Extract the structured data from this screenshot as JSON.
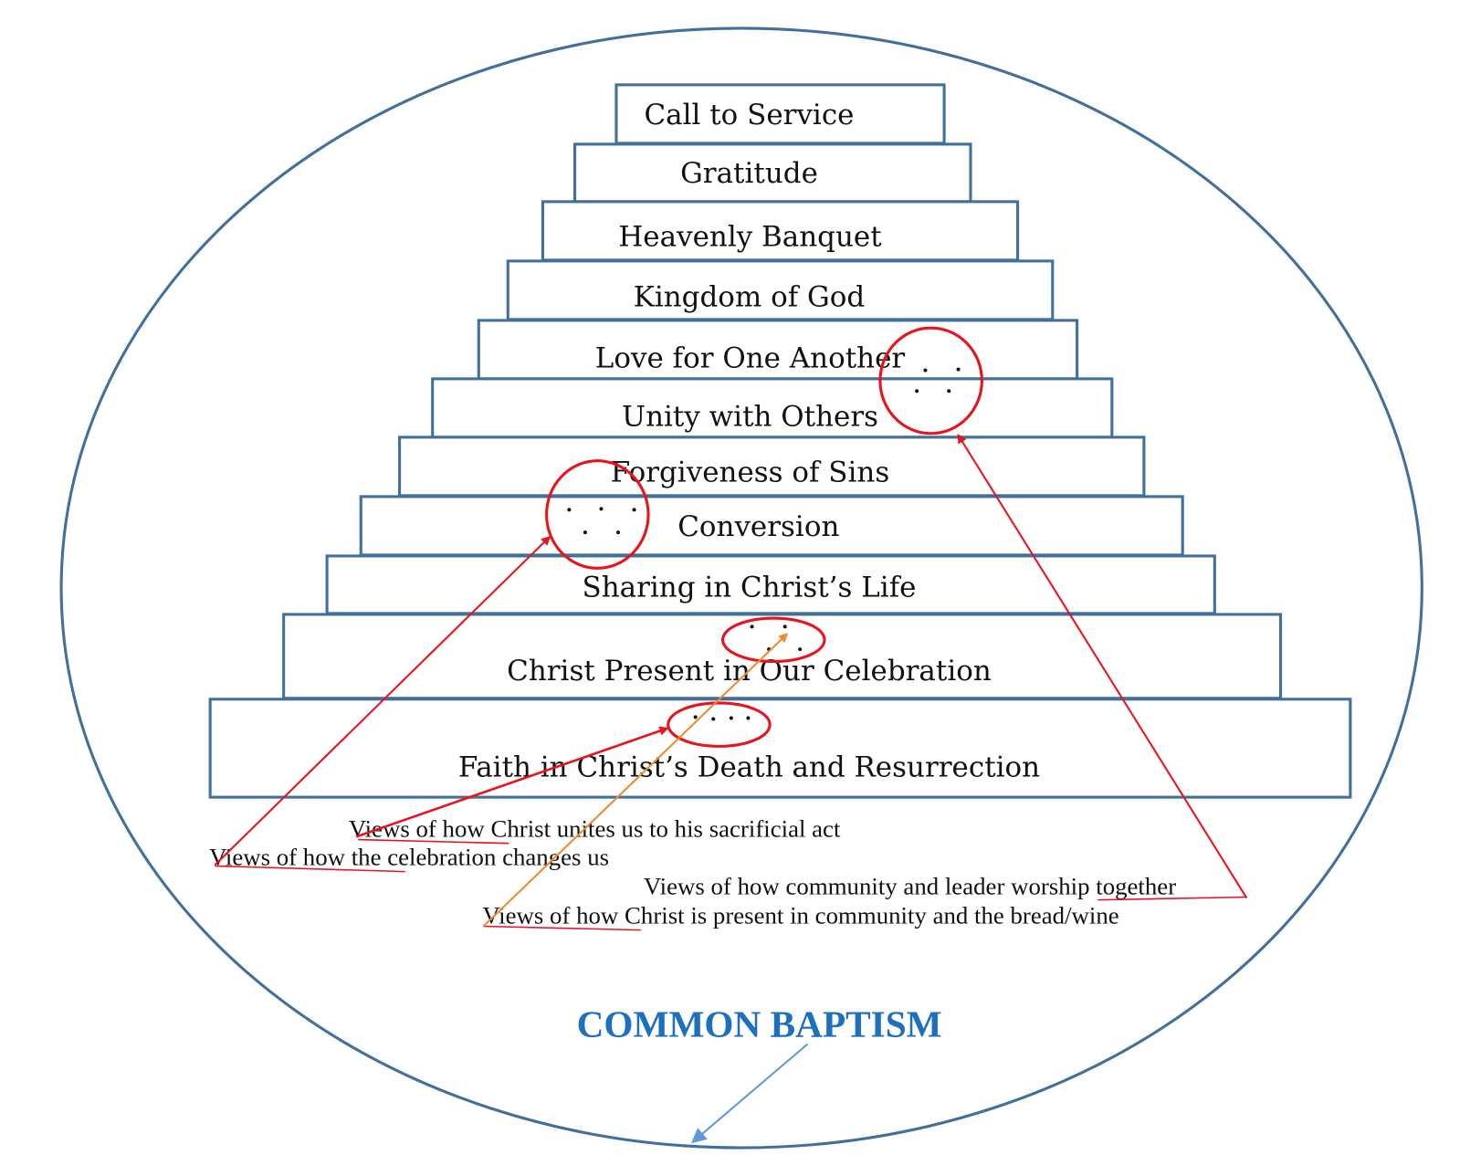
{
  "diagram": {
    "steps": [
      {
        "label": "Call to Service"
      },
      {
        "label": "Gratitude"
      },
      {
        "label": "Heavenly Banquet"
      },
      {
        "label": "Kingdom of God"
      },
      {
        "label": "Love for One Another"
      },
      {
        "label": "Unity with Others"
      },
      {
        "label": "Forgiveness of Sins"
      },
      {
        "label": "Conversion"
      },
      {
        "label": "Sharing in Christ’s Life"
      },
      {
        "label": "Christ Present in Our Celebration"
      },
      {
        "label": "Faith in Christ’s Death and Resurrection"
      }
    ],
    "views": [
      {
        "label": "Views of how Christ unites us to his sacrificial act"
      },
      {
        "label": "Views of how the celebration changes us"
      },
      {
        "label": "Views of how community and leader worship together"
      },
      {
        "label": "Views of how Christ is present in community and the bread/wine"
      }
    ],
    "foundation": {
      "label": "COMMON BAPTISM"
    },
    "colors": {
      "outline": "#41709C",
      "highlight": "#E8141B",
      "orange_arrow": "#F08A30",
      "foundation_text": "#1F6FBF",
      "foundation_arrow": "#5B9BD5"
    }
  }
}
